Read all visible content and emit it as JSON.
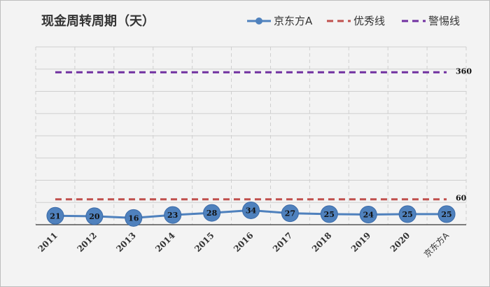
{
  "chart_data": {
    "type": "line",
    "title": "现金周转周期（天）",
    "categories": [
      "2011",
      "2012",
      "2013",
      "2014",
      "2015",
      "2016",
      "2017",
      "2018",
      "2019",
      "2020",
      "京东方A"
    ],
    "series": [
      {
        "name": "京东方A",
        "values": [
          21,
          20,
          16,
          23,
          28,
          34,
          27,
          25,
          24,
          25,
          25
        ],
        "color": "#4f81bd",
        "style": "line-markers"
      },
      {
        "name": "优秀线",
        "values": [
          60,
          60,
          60,
          60,
          60,
          60,
          60,
          60,
          60,
          60,
          60
        ],
        "color": "#c0504d",
        "style": "dashed",
        "end_label": "60"
      },
      {
        "name": "警惕线",
        "values": [
          360,
          360,
          360,
          360,
          360,
          360,
          360,
          360,
          360,
          360,
          360
        ],
        "color": "#7030a0",
        "style": "dashed",
        "end_label": "360"
      }
    ],
    "ylim": [
      0,
      420
    ],
    "grid": true,
    "legend": "top-right"
  }
}
